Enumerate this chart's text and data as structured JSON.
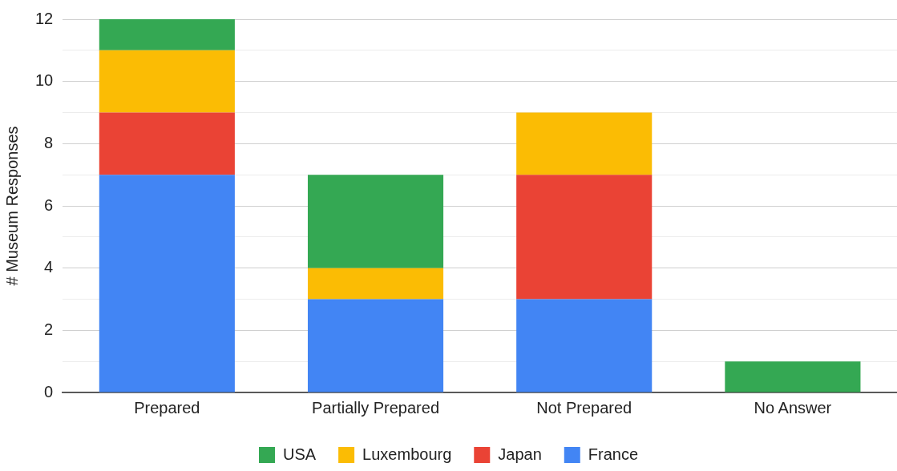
{
  "chart_data": {
    "type": "bar",
    "stacked": true,
    "ylabel": "# Museum Responses",
    "categories": [
      "Prepared",
      "Partially Prepared",
      "Not Prepared",
      "No Answer"
    ],
    "series": [
      {
        "name": "France",
        "color": "#4285f4",
        "values": [
          7,
          3,
          3,
          0
        ]
      },
      {
        "name": "Japan",
        "color": "#ea4335",
        "values": [
          2,
          0,
          4,
          0
        ]
      },
      {
        "name": "Luxembourg",
        "color": "#fbbc04",
        "values": [
          2,
          1,
          2,
          0
        ]
      },
      {
        "name": "USA",
        "color": "#34a853",
        "values": [
          1,
          3,
          0,
          1
        ]
      }
    ],
    "ylim": [
      0,
      12
    ],
    "yticks": [
      0,
      {
        "value": 1,
        "label": null
      },
      2,
      {
        "value": 3,
        "label": null
      },
      4,
      {
        "value": 5,
        "label": null
      },
      6,
      {
        "value": 7,
        "label": null
      },
      8,
      {
        "value": 9,
        "label": null
      },
      10,
      {
        "value": 11,
        "label": null
      },
      12
    ],
    "grid": "y",
    "legend": "bottom"
  }
}
